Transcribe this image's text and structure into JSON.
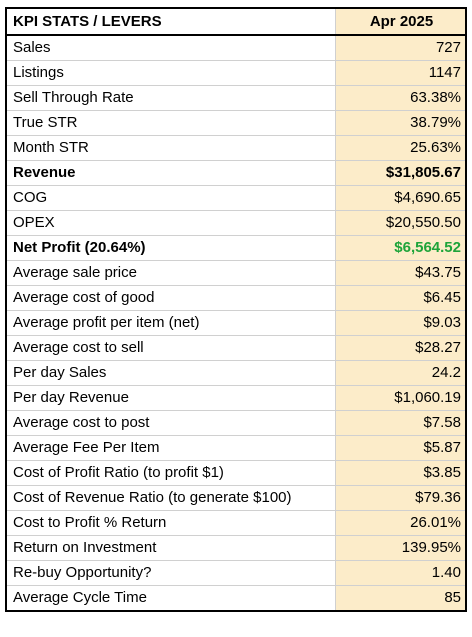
{
  "table": {
    "header": {
      "label": "KPI STATS / LEVERS",
      "period": "Apr 2025"
    },
    "rows": [
      {
        "label": "Sales",
        "value": "727"
      },
      {
        "label": "Listings",
        "value": "1147"
      },
      {
        "label": "Sell Through Rate",
        "value": "63.38%"
      },
      {
        "label": "True STR",
        "value": "38.79%"
      },
      {
        "label": "Month STR",
        "value": "25.63%"
      },
      {
        "label": "Revenue",
        "value": "$31,805.67"
      },
      {
        "label": "COG",
        "value": "$4,690.65"
      },
      {
        "label": "OPEX",
        "value": "$20,550.50"
      },
      {
        "label": "Net Profit (20.64%)",
        "value": "$6,564.52"
      },
      {
        "label": "Average sale price",
        "value": "$43.75"
      },
      {
        "label": "Average cost of good",
        "value": "$6.45"
      },
      {
        "label": "Average profit per item (net)",
        "value": "$9.03"
      },
      {
        "label": "Average cost to sell",
        "value": "$28.27"
      },
      {
        "label": "Per day Sales",
        "value": "24.2"
      },
      {
        "label": "Per day Revenue",
        "value": "$1,060.19"
      },
      {
        "label": "Average cost to post",
        "value": "$7.58"
      },
      {
        "label": "Average Fee Per Item",
        "value": "$5.87"
      },
      {
        "label": "Cost of Profit Ratio (to profit $1)",
        "value": "$3.85"
      },
      {
        "label": "Cost of Revenue Ratio (to generate $100)",
        "value": "$79.36"
      },
      {
        "label": "Cost to Profit % Return",
        "value": "26.01%"
      },
      {
        "label": "Return on Investment",
        "value": "139.95%"
      },
      {
        "label": "Re-buy Opportunity?",
        "value": "1.40"
      },
      {
        "label": "Average Cycle Time",
        "value": "85"
      }
    ]
  },
  "colors": {
    "value_column_fill": "#fcecc9",
    "net_profit_value": "#1ea43a",
    "grid_line": "#d0d0d0",
    "border": "#000000"
  }
}
